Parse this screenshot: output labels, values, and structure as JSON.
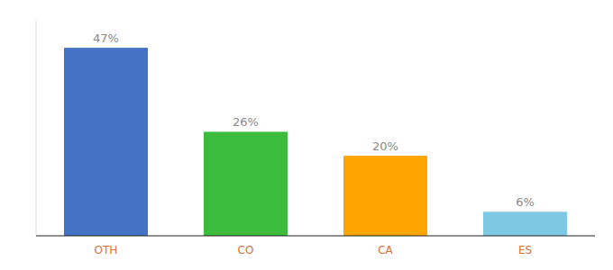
{
  "chart_data": {
    "type": "bar",
    "categories": [
      "OTH",
      "CO",
      "CA",
      "ES"
    ],
    "values": [
      47,
      26,
      20,
      6
    ],
    "value_labels": [
      "47%",
      "26%",
      "20%",
      "6%"
    ],
    "colors": [
      "#4472c4",
      "#3dbb3d",
      "#ffa500",
      "#7ec8e3"
    ],
    "ylim": [
      0,
      54
    ],
    "data_labels": true,
    "tick_labels": "x",
    "grid": false
  }
}
